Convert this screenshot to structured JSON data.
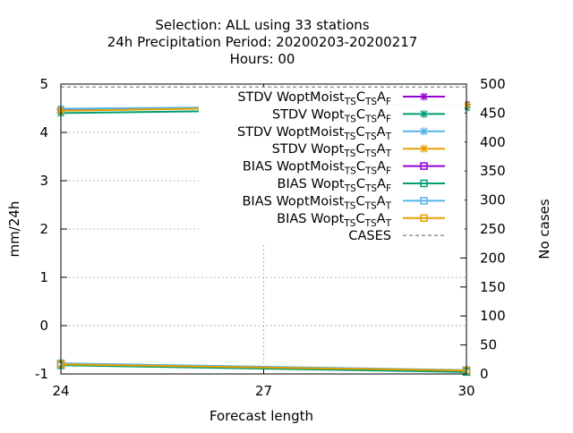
{
  "chart_data": {
    "type": "line",
    "title_lines": [
      "Selection: ALL using    33 stations",
      "24h Precipitation   Period: 20200203-20200217",
      "Hours:  00"
    ],
    "xlabel": "Forecast length",
    "ylabel": "mm/24h",
    "y2label": "No cases",
    "xlim": [
      24,
      30
    ],
    "ylim": [
      -1,
      5
    ],
    "y2lim": [
      0,
      500
    ],
    "xticks": [
      24,
      27,
      30
    ],
    "yticks": [
      -1,
      0,
      1,
      2,
      3,
      4,
      5
    ],
    "y2ticks": [
      0,
      50,
      100,
      150,
      200,
      250,
      300,
      350,
      400,
      450,
      500
    ],
    "grid": true,
    "legend_position": "top-right",
    "series": [
      {
        "name": "STDV WoptMoist_TS C_TS A_F",
        "prefix": "STDV WoptMoist",
        "tail": "F",
        "color": "#9400d3",
        "marker": "x",
        "axis": "y",
        "x": [
          24,
          30
        ],
        "y": [
          4.46,
          4.58
        ]
      },
      {
        "name": "STDV Wopt_TS C_TS A_F",
        "prefix": "STDV Wopt",
        "tail": "F",
        "color": "#009e73",
        "marker": "x",
        "axis": "y",
        "x": [
          24,
          30
        ],
        "y": [
          4.4,
          4.51
        ]
      },
      {
        "name": "STDV WoptMoist_TS C_TS A_T",
        "prefix": "STDV WoptMoist",
        "tail": "T",
        "color": "#56b4e9",
        "marker": "x",
        "axis": "y",
        "x": [
          24,
          30
        ],
        "y": [
          4.49,
          4.56
        ]
      },
      {
        "name": "STDV Wopt_TS C_TS A_T",
        "prefix": "STDV Wopt",
        "tail": "T",
        "color": "#e69f00",
        "marker": "x",
        "axis": "y",
        "x": [
          24,
          30
        ],
        "y": [
          4.45,
          4.57
        ]
      },
      {
        "name": "BIAS WoptMoist_TS C_TS A_F",
        "prefix": "BIAS WoptMoist",
        "tail": "F",
        "color": "#9400d3",
        "marker": "square",
        "axis": "y",
        "x": [
          24,
          30
        ],
        "y": [
          -0.8,
          -0.93
        ]
      },
      {
        "name": "BIAS Wopt_TS C_TS A_F",
        "prefix": "BIAS Wopt",
        "tail": "F",
        "color": "#009e73",
        "marker": "square",
        "axis": "y",
        "x": [
          24,
          30
        ],
        "y": [
          -0.82,
          -0.96
        ]
      },
      {
        "name": "BIAS WoptMoist_TS C_TS A_T",
        "prefix": "BIAS WoptMoist",
        "tail": "T",
        "color": "#56b4e9",
        "marker": "square",
        "axis": "y",
        "x": [
          24,
          30
        ],
        "y": [
          -0.78,
          -0.92
        ]
      },
      {
        "name": "BIAS Wopt_TS C_TS A_T",
        "prefix": "BIAS Wopt",
        "tail": "T",
        "color": "#e69f00",
        "marker": "square",
        "axis": "y",
        "x": [
          24,
          30
        ],
        "y": [
          -0.8,
          -0.93
        ]
      },
      {
        "name": "CASES",
        "prefix": "CASES",
        "tail": "",
        "color": "#888888",
        "marker": "none",
        "dashed": true,
        "axis": "y2",
        "x": [
          24,
          30
        ],
        "y": [
          495,
          495
        ]
      }
    ]
  }
}
